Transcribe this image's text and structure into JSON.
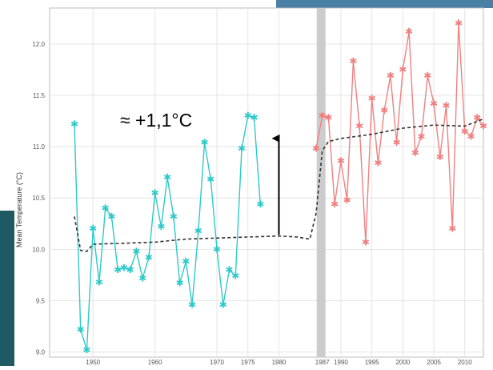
{
  "chart_data": {
    "type": "line",
    "ylabel": "Mean Temperature (°C)",
    "ylim": [
      8.95,
      12.35
    ],
    "xlim": [
      1943,
      2013
    ],
    "yticks": [
      "9.0",
      "9.5",
      "10.0",
      "10.5",
      "11.0",
      "11.5",
      "12.0"
    ],
    "ytick_values": [
      9.0,
      9.5,
      10.0,
      10.5,
      11.0,
      11.5,
      12.0
    ],
    "xticks": [
      "1950",
      "1960",
      "1970",
      "1975",
      "1980",
      "1987",
      "1990",
      "1995",
      "2000",
      "2005",
      "2010"
    ],
    "grid": true,
    "annotation": {
      "text": "≈ +1,1°C",
      "arrow_x": 1980,
      "arrow_from_y": 10.14,
      "arrow_to_y": 11.08
    },
    "break_year": 1987,
    "colors": {
      "before": "#2ec9c9",
      "after": "#f08080",
      "trend": "#333333",
      "break_band": "#cccccc"
    },
    "series": [
      {
        "x": [
          1947,
          1948,
          1949,
          1950,
          1951,
          1952,
          1953,
          1954,
          1955,
          1956,
          1957,
          1958,
          1959,
          1960,
          1961,
          1962,
          1963,
          1964,
          1965,
          1966,
          1967,
          1968,
          1969,
          1970,
          1971,
          1972,
          1973,
          1974,
          1975,
          1976,
          1977
        ],
        "values": [
          11.22,
          9.22,
          9.02,
          10.2,
          9.68,
          10.4,
          10.32,
          9.8,
          9.82,
          9.8,
          9.98,
          9.72,
          9.92,
          10.55,
          10.22,
          10.7,
          10.32,
          9.67,
          9.88,
          9.46,
          10.18,
          11.04,
          10.68,
          10.0,
          9.46,
          9.8,
          9.74,
          10.98,
          11.3,
          11.28,
          10.44
        ]
      },
      {
        "x": [
          1986,
          1987,
          1988,
          1989,
          1990,
          1991,
          1992,
          1993,
          1994,
          1995,
          1996,
          1997,
          1998,
          1999,
          2000,
          2001,
          2002,
          2003,
          2004,
          2005,
          2006,
          2007,
          2008,
          2009,
          2010,
          2011,
          2012,
          2013
        ],
        "values": [
          10.98,
          11.3,
          11.28,
          10.44,
          10.86,
          10.48,
          11.83,
          11.2,
          10.07,
          11.47,
          10.84,
          11.35,
          11.69,
          11.04,
          11.75,
          12.12,
          10.94,
          11.1,
          11.69,
          11.42,
          10.9,
          11.4,
          10.2,
          12.2,
          11.15,
          11.1,
          11.28,
          11.2
        ]
      }
    ],
    "trend": {
      "x": [
        1947,
        1948,
        1949,
        1950,
        1955,
        1960,
        1965,
        1970,
        1975,
        1980,
        1983,
        1985,
        1986,
        1987,
        1988,
        1990,
        1995,
        2000,
        2005,
        2010,
        2013
      ],
      "values": [
        10.32,
        9.99,
        9.98,
        10.05,
        10.06,
        10.07,
        10.1,
        10.11,
        10.12,
        10.13,
        10.12,
        10.1,
        10.35,
        10.96,
        11.05,
        11.08,
        11.12,
        11.18,
        11.21,
        11.2,
        11.27
      ]
    }
  }
}
